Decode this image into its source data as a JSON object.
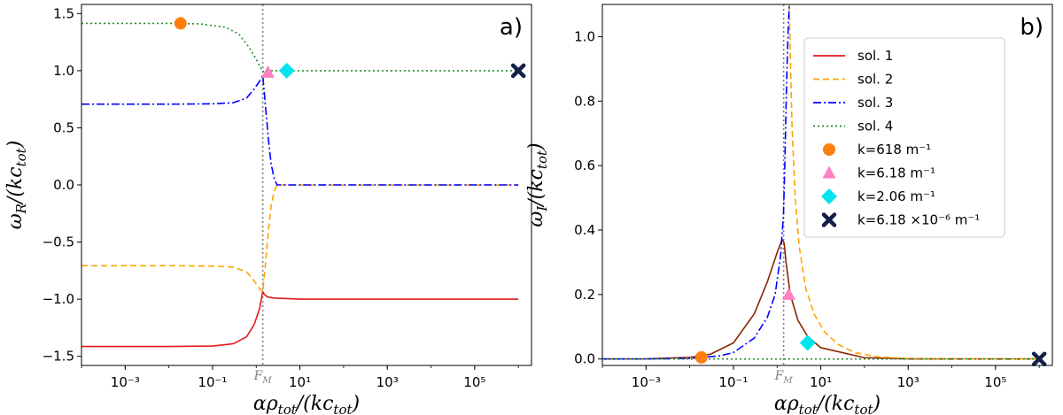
{
  "chart_data": [
    {
      "type": "line",
      "panel_label": "a)",
      "ylabel": "ωR/(kctot)",
      "xlabel": "αρtot/(kctot)",
      "xscale": "log",
      "xlim": [
        0.0001,
        2000000
      ],
      "ylim": [
        -1.58,
        1.58
      ],
      "xtick_values": [
        0.001,
        0.1,
        10,
        1000,
        100000
      ],
      "xtick_labels": [
        "10⁻³",
        "10⁻¹",
        "10¹",
        "10³",
        "10⁵"
      ],
      "ytick_values": [
        -1.5,
        -1.0,
        -0.5,
        0.0,
        0.5,
        1.0,
        1.5
      ],
      "ytick_labels": [
        "−1.5",
        "−1.0",
        "−0.5",
        "0.0",
        "0.5",
        "1.0",
        "1.5"
      ],
      "vline": {
        "x": 1.41,
        "label": "FM"
      },
      "series": [
        {
          "name": "sol. 1",
          "color": "#e41a1c",
          "dash": "solid",
          "x": [
            0.0001,
            0.01,
            0.1,
            0.3,
            0.6,
            0.9,
            1.2,
            1.41,
            1.5,
            1.8,
            2.5,
            10,
            100,
            1000000
          ],
          "y": [
            -1.414,
            -1.414,
            -1.41,
            -1.39,
            -1.33,
            -1.22,
            -1.08,
            -0.93,
            -0.955,
            -0.98,
            -0.99,
            -1.0,
            -1.0,
            -1.0
          ]
        },
        {
          "name": "sol. 2",
          "color": "#ffa500",
          "dash": "dashed",
          "x": [
            0.0001,
            0.01,
            0.1,
            0.3,
            0.6,
            0.9,
            1.2,
            1.41,
            1.6,
            1.9,
            2.2,
            2.6,
            3.0,
            1000000
          ],
          "y": [
            -0.707,
            -0.707,
            -0.71,
            -0.72,
            -0.76,
            -0.84,
            -0.91,
            -0.93,
            -0.72,
            -0.4,
            -0.18,
            -0.05,
            0.0,
            0.0
          ]
        },
        {
          "name": "sol. 3",
          "color": "#0000ff",
          "dash": "dashdot",
          "x": [
            0.0001,
            0.01,
            0.1,
            0.3,
            0.6,
            0.9,
            1.2,
            1.41,
            1.6,
            1.9,
            2.2,
            2.6,
            3.0,
            1000000
          ],
          "y": [
            0.707,
            0.707,
            0.71,
            0.72,
            0.76,
            0.84,
            0.91,
            0.96,
            0.72,
            0.4,
            0.18,
            0.05,
            0.0,
            0.0
          ]
        },
        {
          "name": "sol. 4",
          "color": "#228b22",
          "dash": "dotted",
          "x": [
            0.0001,
            0.01,
            0.05,
            0.2,
            0.4,
            0.7,
            1.0,
            1.2,
            1.41,
            1.6,
            2.0,
            10,
            1000000
          ],
          "y": [
            1.414,
            1.414,
            1.41,
            1.38,
            1.32,
            1.2,
            1.1,
            1.04,
            0.99,
            1.0,
            1.0,
            1.0,
            1.0
          ]
        }
      ],
      "markers": [
        {
          "label": "k=618 m⁻¹",
          "shape": "circle",
          "color": "#ff7f0e",
          "x": 0.0185,
          "y": 1.414
        },
        {
          "label": "k=6.18 m⁻¹",
          "shape": "triangle",
          "color": "#ff80c0",
          "x": 1.85,
          "y": 0.985
        },
        {
          "label": "k=2.06 m⁻¹",
          "shape": "diamond",
          "color": "#00e5ee",
          "x": 5.0,
          "y": 1.0
        },
        {
          "label": "k=6.18 ×10⁻⁶ m⁻¹",
          "shape": "x",
          "color": "#14204a",
          "x": 1000000,
          "y": 1.0
        }
      ]
    },
    {
      "type": "line",
      "panel_label": "b)",
      "ylabel": "ωI/(kctot)",
      "xlabel": "αρtot/(kctot)",
      "xscale": "log",
      "xlim": [
        0.0001,
        2000000
      ],
      "ylim": [
        -0.02,
        1.1
      ],
      "xtick_values": [
        0.001,
        0.1,
        10,
        1000,
        100000
      ],
      "xtick_labels": [
        "10⁻³",
        "10⁻¹",
        "10¹",
        "10³",
        "10⁵"
      ],
      "ytick_values": [
        0.0,
        0.2,
        0.4,
        0.6,
        0.8,
        1.0
      ],
      "ytick_labels": [
        "0.0",
        "0.2",
        "0.4",
        "0.6",
        "0.8",
        "1.0"
      ],
      "vline": {
        "x": 1.41,
        "label": "FM"
      },
      "series": [
        {
          "name": "sol. 1",
          "color": "#8b2500",
          "dash": "solid",
          "x": [
            0.0001,
            0.001,
            0.01,
            0.03,
            0.1,
            0.3,
            0.6,
            1.0,
            1.3,
            1.45,
            1.6,
            2.0,
            3.0,
            5.0,
            10,
            100,
            1000,
            10000,
            1000000
          ],
          "y": [
            0.0,
            0.0005,
            0.005,
            0.015,
            0.05,
            0.14,
            0.24,
            0.33,
            0.37,
            0.36,
            0.3,
            0.2,
            0.12,
            0.07,
            0.035,
            0.004,
            0.0005,
            0.0,
            0.0
          ]
        },
        {
          "name": "sol. 2",
          "color": "#ffa500",
          "dash": "dashed",
          "x": [
            1.9,
            2.0,
            2.2,
            2.6,
            3.2,
            4.5,
            7,
            12,
            25,
            60,
            200,
            1000,
            10000,
            1000000
          ],
          "y": [
            1.1,
            0.95,
            0.72,
            0.5,
            0.35,
            0.22,
            0.14,
            0.085,
            0.045,
            0.02,
            0.007,
            0.0015,
            0.0002,
            0.0
          ]
        },
        {
          "name": "sol. 3",
          "color": "#0000ff",
          "dash": "dashdot",
          "x": [
            0.0001,
            0.001,
            0.01,
            0.05,
            0.1,
            0.3,
            0.6,
            0.9,
            1.2,
            1.4,
            1.5,
            1.6,
            1.7,
            1.8,
            1.9
          ],
          "y": [
            0.0,
            0.0002,
            0.002,
            0.01,
            0.02,
            0.065,
            0.13,
            0.2,
            0.32,
            0.45,
            0.6,
            0.78,
            0.92,
            1.03,
            1.1
          ]
        },
        {
          "name": "sol. 4",
          "color": "#228b22",
          "dash": "dotted",
          "x": [
            0.0001,
            1000000
          ],
          "y": [
            0.0,
            0.0
          ]
        }
      ],
      "markers": [
        {
          "label": "k=618 m⁻¹",
          "shape": "circle",
          "color": "#ff7f0e",
          "x": 0.0185,
          "y": 0.005
        },
        {
          "label": "k=6.18 m⁻¹",
          "shape": "triangle",
          "color": "#ff80c0",
          "x": 1.85,
          "y": 0.2
        },
        {
          "label": "k=2.06 m⁻¹",
          "shape": "diamond",
          "color": "#00e5ee",
          "x": 5.0,
          "y": 0.05
        },
        {
          "label": "k=6.18 ×10⁻⁶ m⁻¹",
          "shape": "x",
          "color": "#14204a",
          "x": 1000000,
          "y": 0.0
        }
      ],
      "legend": {
        "placement": "upper-right",
        "entries": [
          {
            "label": "sol. 1",
            "kind": "line",
            "color": "#e41a1c",
            "dash": "solid"
          },
          {
            "label": "sol. 2",
            "kind": "line",
            "color": "#ffa500",
            "dash": "dashed"
          },
          {
            "label": "sol. 3",
            "kind": "line",
            "color": "#0000ff",
            "dash": "dashdot"
          },
          {
            "label": "sol. 4",
            "kind": "line",
            "color": "#228b22",
            "dash": "dotted"
          },
          {
            "label": "k=618 m⁻¹",
            "kind": "marker",
            "shape": "circle",
            "color": "#ff7f0e"
          },
          {
            "label": "k=6.18 m⁻¹",
            "kind": "marker",
            "shape": "triangle",
            "color": "#ff80c0"
          },
          {
            "label": "k=2.06 m⁻¹",
            "kind": "marker",
            "shape": "diamond",
            "color": "#00e5ee"
          },
          {
            "label": "k=6.18 ×10⁻⁶ m⁻¹",
            "kind": "marker",
            "shape": "x",
            "color": "#14204a"
          }
        ]
      }
    }
  ]
}
